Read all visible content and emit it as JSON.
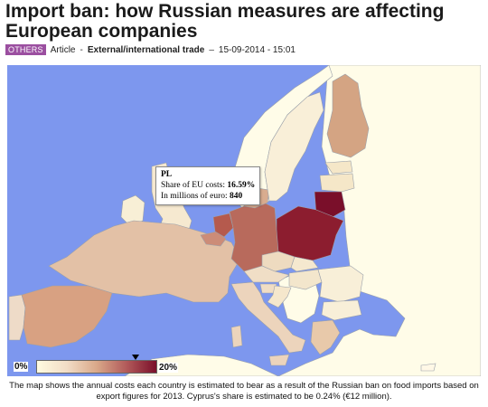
{
  "article": {
    "title": "Import ban: how Russian measures are affecting European companies",
    "tag": "OTHERS",
    "type": "Article",
    "separator": "-",
    "category": "External/international trade",
    "dash": "–",
    "datetime": "15-09-2014 - 15:01"
  },
  "tooltip": {
    "country": "PL",
    "share_label": "Share of EU costs:",
    "share_value": "16.59%",
    "millions_label": "In millions of euro:",
    "millions_value": "840"
  },
  "legend": {
    "min_label": "0%",
    "max_label": "20%",
    "marker_value_percent": 16.59
  },
  "colors": {
    "sea": "#7d97ee",
    "land_outside": "#fffce8",
    "land_nodata": "#fffbe8",
    "border": "#9aa0aa",
    "pl": "#8c1d2f",
    "lt": "#7a0f2a",
    "de": "#b86a5c",
    "nl": "#b55a4d",
    "be": "#cc8c78",
    "fr": "#e3c1a6",
    "es": "#d8a182",
    "pt": "#eedbc8",
    "it": "#ecd4bc",
    "dk": "#d9ac8f",
    "fi": "#d4a483",
    "se": "#f9efd8",
    "ee": "#f5e7c8",
    "lv": "#f5e7c8",
    "gr": "#e8c9aa",
    "at": "#f0dec6",
    "cz": "#eedbc0",
    "hu": "#f3e6cc",
    "ro": "#f8efd8",
    "bg": "#f8efd8",
    "ie": "#f8efd6",
    "gb": "#f6e9d0",
    "sk": "#f5e8cf",
    "si": "#f0ddc4",
    "hr": "#f5e7cc",
    "cy": "#fff8e6"
  },
  "caption": "The map shows the annual costs each country is estimated to bear as a result of the Russian ban on food imports based on export figures for 2013. Cyprus's share is estimated to be 0.24% (€12 million)."
}
